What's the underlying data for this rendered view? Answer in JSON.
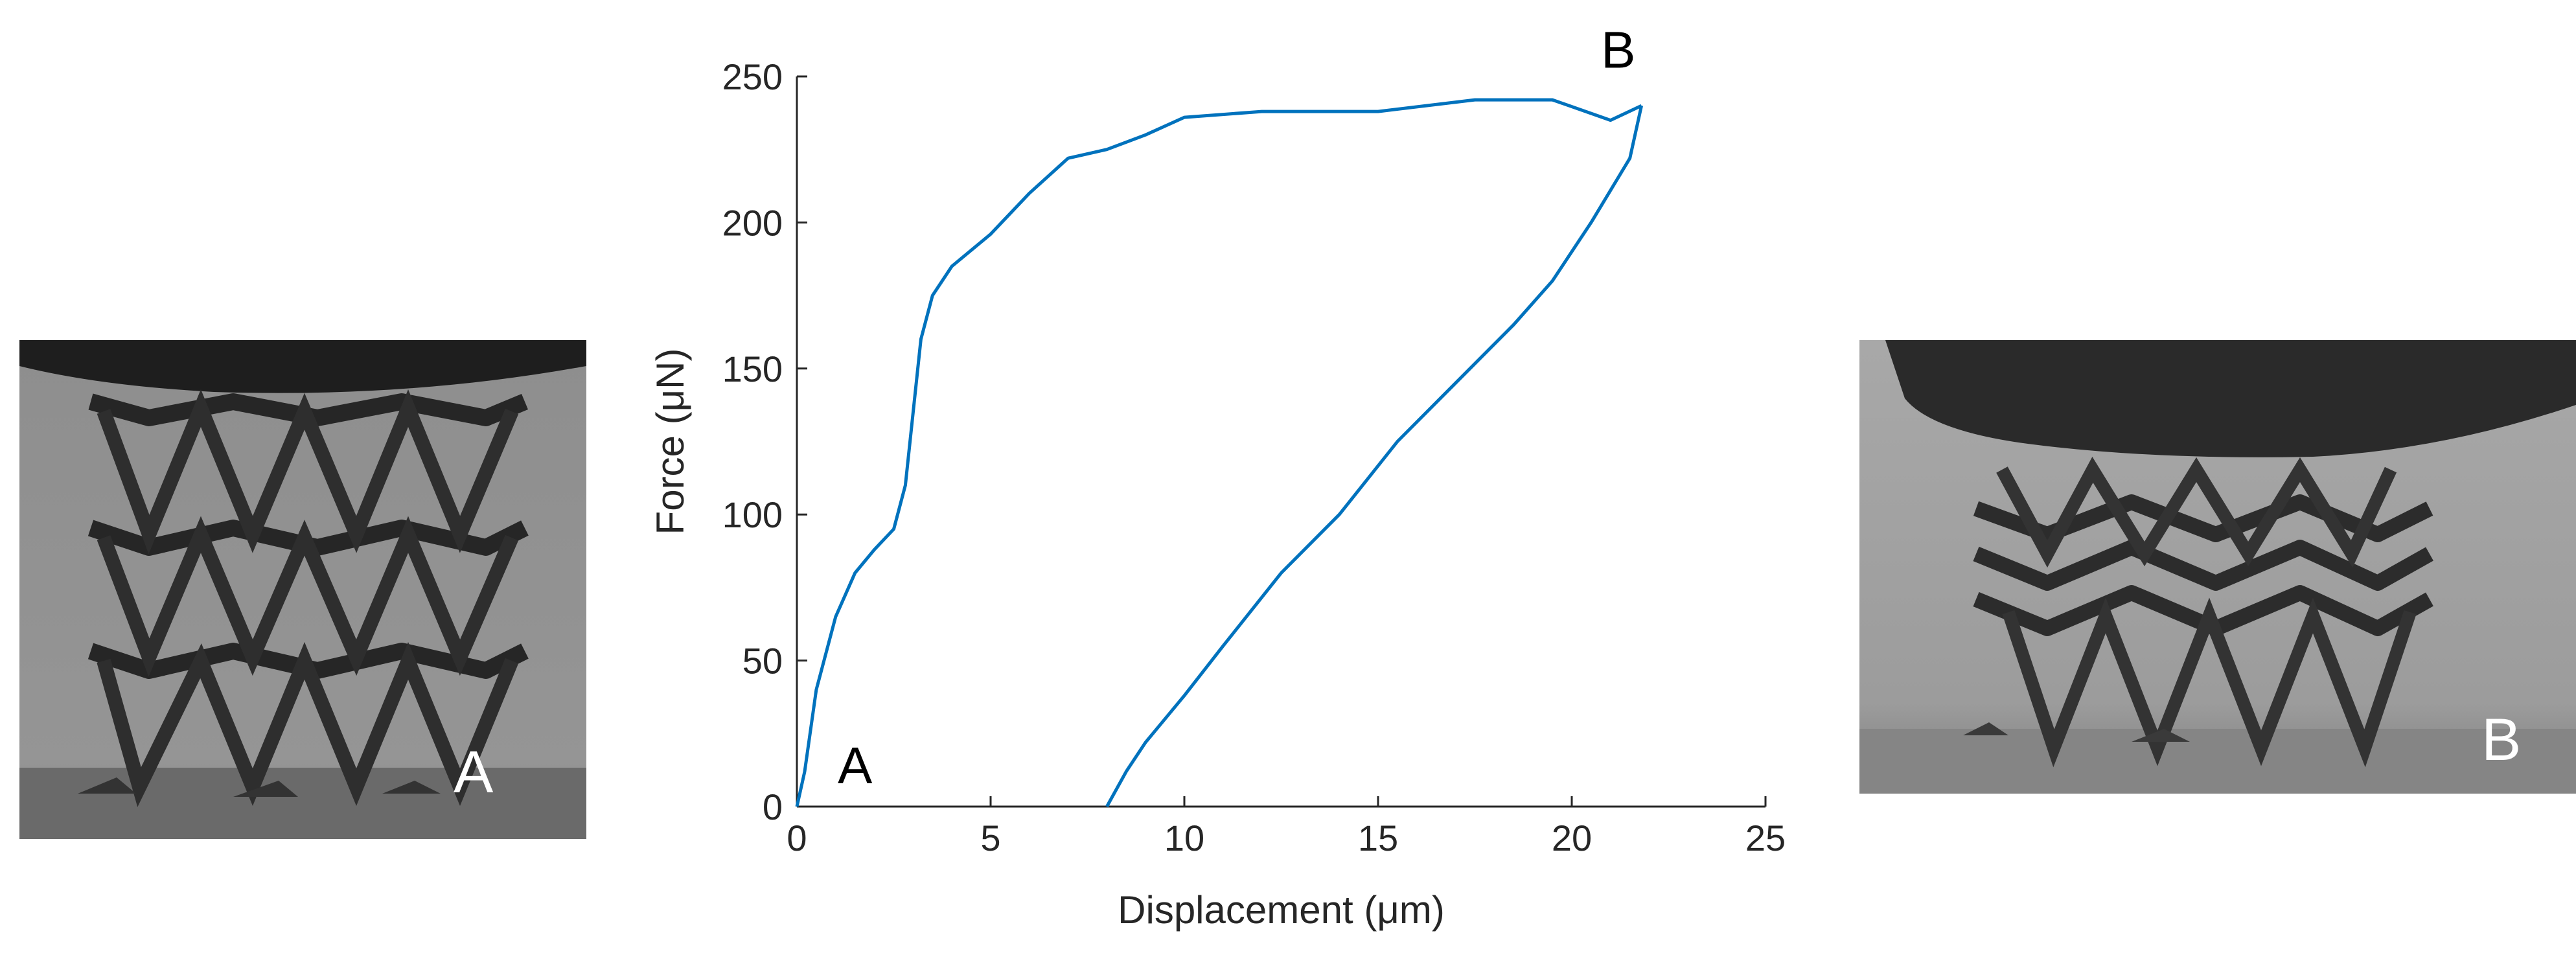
{
  "panels": {
    "left": {
      "label": "A"
    },
    "right": {
      "label": "B"
    }
  },
  "chart_data": {
    "type": "line",
    "xlabel": "Displacement (μm)",
    "ylabel": "Force (μN)",
    "xlim": [
      0,
      25
    ],
    "ylim": [
      0,
      250
    ],
    "xticks": [
      0,
      5,
      10,
      15,
      20,
      25
    ],
    "yticks": [
      0,
      50,
      100,
      150,
      200,
      250
    ],
    "grid": false,
    "color": "#0072BD",
    "annotations": [
      {
        "text": "A",
        "x": 1.5,
        "y": 8
      },
      {
        "text": "B",
        "x": 21.2,
        "y": 253
      }
    ],
    "series": [
      {
        "x": [
          0,
          0.2,
          0.5,
          1.0,
          1.5,
          2.0,
          2.5,
          2.8,
          3.0,
          3.2,
          3.5,
          4.0,
          5.0,
          6.0,
          7.0,
          8.0,
          9.0,
          10.0,
          12.0,
          15.0,
          17.5,
          19.5,
          21.0,
          21.8
        ],
        "y": [
          0,
          12,
          40,
          65,
          80,
          88,
          95,
          110,
          135,
          160,
          175,
          185,
          196,
          210,
          222,
          225,
          230,
          236,
          238,
          238,
          242,
          242,
          235,
          240
        ]
      },
      {
        "x": [
          21.8,
          21.5,
          20.5,
          19.5,
          18.5,
          17.0,
          15.5,
          14.0,
          12.5,
          11.0,
          10.0,
          9.0,
          8.5,
          8.0
        ],
        "y": [
          240,
          222,
          200,
          180,
          165,
          145,
          125,
          100,
          80,
          55,
          38,
          22,
          12,
          0
        ]
      }
    ]
  }
}
